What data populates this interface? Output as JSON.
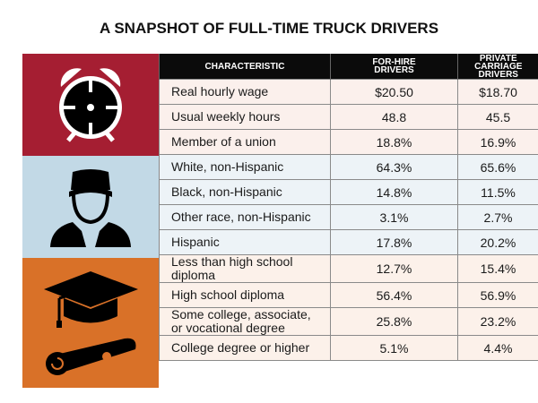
{
  "title": "A SNAPSHOT OF FULL-TIME TRUCK DRIVERS",
  "headers": {
    "characteristic": "CHARACTERISTIC",
    "for_hire": [
      "FOR-HIRE",
      "DRIVERS"
    ],
    "private": [
      "PRIVATE",
      "CARRIAGE DRIVERS"
    ]
  },
  "groups": [
    {
      "icon": "alarm-clock-icon",
      "color": "#a51e32"
    },
    {
      "icon": "driver-person-icon",
      "color": "#c2d9e6"
    },
    {
      "icon": "graduation-cap-diploma-icon",
      "color": "#d97128"
    }
  ],
  "rows": [
    {
      "characteristic": "Real hourly wage",
      "for_hire": "$20.50",
      "private": "$18.70"
    },
    {
      "characteristic": "Usual weekly hours",
      "for_hire": "48.8",
      "private": "45.5"
    },
    {
      "characteristic": "Member of a union",
      "for_hire": "18.8%",
      "private": "16.9%"
    },
    {
      "characteristic": "White, non-Hispanic",
      "for_hire": "64.3%",
      "private": "65.6%"
    },
    {
      "characteristic": "Black, non-Hispanic",
      "for_hire": "14.8%",
      "private": "11.5%"
    },
    {
      "characteristic": "Other race, non-Hispanic",
      "for_hire": "3.1%",
      "private": "2.7%"
    },
    {
      "characteristic": "Hispanic",
      "for_hire": "17.8%",
      "private": "20.2%"
    },
    {
      "characteristic": "Less than high school diploma",
      "for_hire": "12.7%",
      "private": "15.4%"
    },
    {
      "characteristic": "High school diploma",
      "for_hire": "56.4%",
      "private": "56.9%"
    },
    {
      "characteristic": "Some college, associate, or vocational degree",
      "for_hire": "25.8%",
      "private": "23.2%"
    },
    {
      "characteristic": "College degree or higher",
      "for_hire": "5.1%",
      "private": "4.4%"
    }
  ]
}
